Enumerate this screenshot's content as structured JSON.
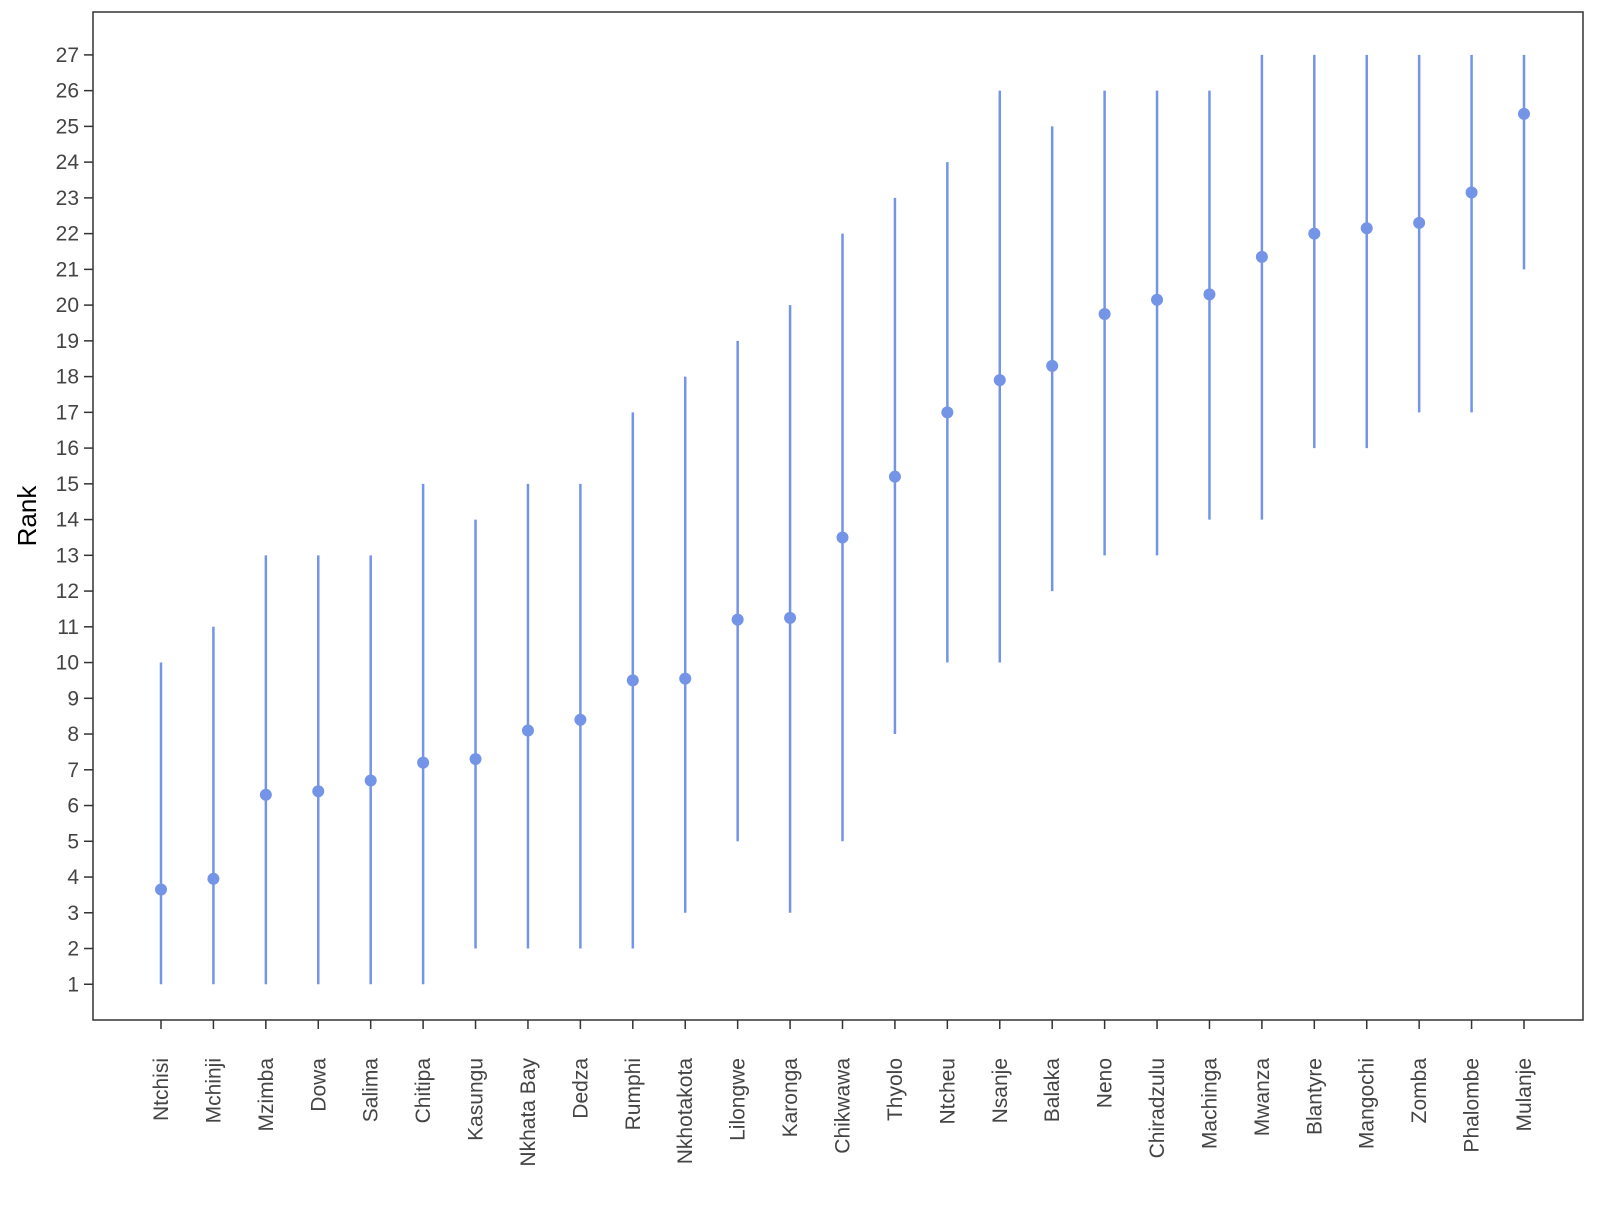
{
  "chart_data": {
    "type": "scatter",
    "title": "",
    "xlabel": "",
    "ylabel": "Rank",
    "ylim": [
      0,
      28.2
    ],
    "y_ticks": [
      1,
      2,
      3,
      4,
      5,
      6,
      7,
      8,
      9,
      10,
      11,
      12,
      13,
      14,
      15,
      16,
      17,
      18,
      19,
      20,
      21,
      22,
      23,
      24,
      25,
      26,
      27
    ],
    "grid": false,
    "legend": "none",
    "color": "#7494E8",
    "categories": [
      "Ntchisi",
      "Mchinji",
      "Mzimba",
      "Dowa",
      "Salima",
      "Chitipa",
      "Kasungu",
      "Nkhata Bay",
      "Dedza",
      "Rumphi",
      "Nkhotakota",
      "Lilongwe",
      "Karonga",
      "Chikwawa",
      "Thyolo",
      "Ntcheu",
      "Nsanje",
      "Balaka",
      "Neno",
      "Chiradzulu",
      "Machinga",
      "Mwanza",
      "Blantyre",
      "Mangochi",
      "Zomba",
      "Phalombe",
      "Mulanje"
    ],
    "points": [
      {
        "value": 3.65,
        "low": 1,
        "high": 10
      },
      {
        "value": 3.95,
        "low": 1,
        "high": 11
      },
      {
        "value": 6.3,
        "low": 1,
        "high": 13
      },
      {
        "value": 6.4,
        "low": 1,
        "high": 13
      },
      {
        "value": 6.7,
        "low": 1,
        "high": 13
      },
      {
        "value": 7.2,
        "low": 1,
        "high": 15
      },
      {
        "value": 7.3,
        "low": 2,
        "high": 14
      },
      {
        "value": 8.1,
        "low": 2,
        "high": 15
      },
      {
        "value": 8.4,
        "low": 2,
        "high": 15
      },
      {
        "value": 9.5,
        "low": 2,
        "high": 17
      },
      {
        "value": 9.55,
        "low": 3,
        "high": 18
      },
      {
        "value": 11.2,
        "low": 5,
        "high": 19
      },
      {
        "value": 11.25,
        "low": 3,
        "high": 20
      },
      {
        "value": 13.5,
        "low": 5,
        "high": 22
      },
      {
        "value": 15.2,
        "low": 8,
        "high": 23
      },
      {
        "value": 17.0,
        "low": 10,
        "high": 24
      },
      {
        "value": 17.9,
        "low": 10,
        "high": 26
      },
      {
        "value": 18.3,
        "low": 12,
        "high": 25
      },
      {
        "value": 19.75,
        "low": 13,
        "high": 26
      },
      {
        "value": 20.15,
        "low": 13,
        "high": 26
      },
      {
        "value": 20.3,
        "low": 14,
        "high": 26
      },
      {
        "value": 21.35,
        "low": 14,
        "high": 27
      },
      {
        "value": 22.0,
        "low": 16,
        "high": 27
      },
      {
        "value": 22.15,
        "low": 16,
        "high": 27
      },
      {
        "value": 22.3,
        "low": 17,
        "high": 27
      },
      {
        "value": 23.15,
        "low": 17,
        "high": 27
      },
      {
        "value": 25.35,
        "low": 21,
        "high": 27
      }
    ]
  }
}
